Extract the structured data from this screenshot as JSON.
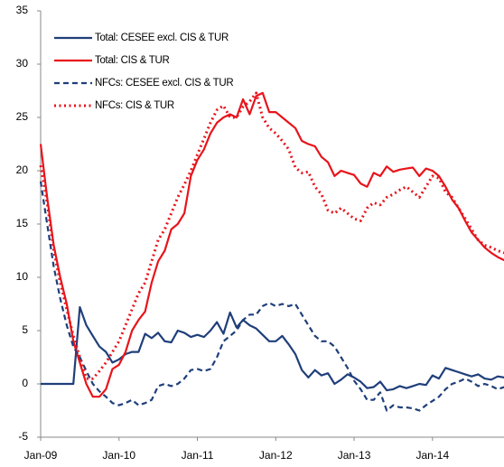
{
  "chart_data": {
    "type": "line",
    "categories": [
      "Jan-09",
      null,
      null,
      null,
      null,
      null,
      null,
      null,
      null,
      null,
      null,
      null,
      "Jan-10",
      null,
      null,
      null,
      null,
      null,
      null,
      null,
      null,
      null,
      null,
      null,
      "Jan-11",
      null,
      null,
      null,
      null,
      null,
      null,
      null,
      null,
      null,
      null,
      null,
      "Jan-12",
      null,
      null,
      null,
      null,
      null,
      null,
      null,
      null,
      null,
      null,
      null,
      "Jan-13",
      null,
      null,
      null,
      null,
      null,
      null,
      null,
      null,
      null,
      null,
      null,
      "Jan-14",
      null,
      null,
      null,
      null,
      null,
      null,
      null,
      null,
      null,
      null,
      null
    ],
    "ylim": [
      -5,
      35
    ],
    "yticks": [
      -5,
      0,
      5,
      10,
      15,
      20,
      25,
      30,
      35
    ],
    "series": [
      {
        "name": "Total: CESEE excl. CIS & TUR",
        "color": "#1f3f7a",
        "style": "solid",
        "values": [
          0,
          0,
          0,
          0,
          0,
          0,
          7.2,
          5.5,
          4.5,
          3.5,
          3,
          2,
          2.3,
          2.8,
          3,
          3,
          4.7,
          4.3,
          4.8,
          4,
          3.9,
          5,
          4.8,
          4.4,
          4.6,
          4.4,
          5,
          5.8,
          4.7,
          6.7,
          5.3,
          6,
          5.5,
          5.2,
          4.6,
          4,
          4,
          4.5,
          3.7,
          2.8,
          1.3,
          0.6,
          1.3,
          0.8,
          1,
          0,
          0.4,
          0.9,
          0.6,
          0.2,
          -0.4,
          -0.3,
          0.2,
          -0.6,
          -0.5,
          -0.2,
          -0.4,
          -0.2,
          0,
          -0.1,
          0.8,
          0.5,
          1.5,
          1.3,
          1.1,
          0.9,
          0.7,
          0.9,
          0.5,
          0.4,
          0.7,
          0.6
        ]
      },
      {
        "name": "Total: CIS & TUR",
        "color": "#e8141b",
        "style": "solid",
        "values": [
          22.5,
          17.5,
          13,
          10,
          7.5,
          4,
          2,
          0,
          -1.2,
          -1.2,
          -0.5,
          1.4,
          1.8,
          3,
          5,
          6,
          6.8,
          9.5,
          11.5,
          12.5,
          14.5,
          15,
          16,
          19.5,
          21,
          22,
          23.5,
          24.5,
          25,
          25.3,
          25,
          26.7,
          25.3,
          27,
          27.3,
          25.5,
          25.5,
          25,
          24.5,
          24,
          22.8,
          22.5,
          22.3,
          21.3,
          20.8,
          19.5,
          20,
          19.8,
          19.6,
          18.8,
          18.5,
          19.8,
          19.5,
          20.4,
          19.9,
          20.1,
          20.2,
          20.3,
          19.5,
          20.2,
          20,
          19.5,
          18.5,
          17.3,
          16.5,
          15.3,
          14.2,
          13.5,
          12.8,
          12.3,
          11.9,
          11.6
        ]
      },
      {
        "name": "NFCs: CESEE excl. CIS & TUR",
        "color": "#1f3f7a",
        "style": "dashed",
        "values": [
          19,
          15,
          11,
          8,
          5.5,
          3.5,
          2.5,
          1.2,
          0,
          -0.7,
          -1.2,
          -1.8,
          -2,
          -1.8,
          -1.5,
          -2,
          -1.8,
          -1.5,
          -0.2,
          0,
          -0.2,
          0,
          0.5,
          1.3,
          1.4,
          1.2,
          1.4,
          2.5,
          4,
          4.5,
          5,
          6,
          6.5,
          6.5,
          7.3,
          7.6,
          7.3,
          7.5,
          7.3,
          7.5,
          6.5,
          5.5,
          4.5,
          4,
          4,
          3.5,
          2.5,
          1.5,
          0.3,
          -0.5,
          -1.5,
          -1.5,
          -0.8,
          -2.5,
          -2,
          -2.2,
          -2.2,
          -2.3,
          -2.5,
          -2,
          -1.6,
          -1.2,
          -0.5,
          0,
          0.2,
          0.5,
          0.2,
          -0.2,
          0,
          -0.2,
          -0.5,
          -0.3
        ]
      },
      {
        "name": "NFCs: CIS & TUR",
        "color": "#e8141b",
        "style": "dotted",
        "values": [
          20.5,
          17,
          12.5,
          9.5,
          7,
          4.5,
          2.5,
          0.5,
          0.5,
          1.2,
          2,
          3,
          4,
          5.5,
          7,
          8.5,
          9.5,
          11.5,
          13.5,
          14.5,
          16,
          17.5,
          18.7,
          20,
          21.5,
          23,
          24.5,
          25.7,
          26.1,
          25,
          25,
          26,
          26.5,
          27.3,
          25,
          24,
          23.5,
          22.8,
          22,
          20.3,
          19.8,
          19.9,
          18.5,
          17.8,
          16.3,
          16,
          16.5,
          16,
          15.5,
          15.3,
          16.5,
          17,
          16.8,
          17.5,
          17.8,
          18.2,
          18.5,
          18,
          17.5,
          18.5,
          19.5,
          19.3,
          18,
          17.5,
          16.5,
          15.5,
          14.5,
          13.5,
          13,
          12.8,
          12.5,
          12.3
        ]
      }
    ],
    "legend": "upper-left",
    "grid": false
  }
}
